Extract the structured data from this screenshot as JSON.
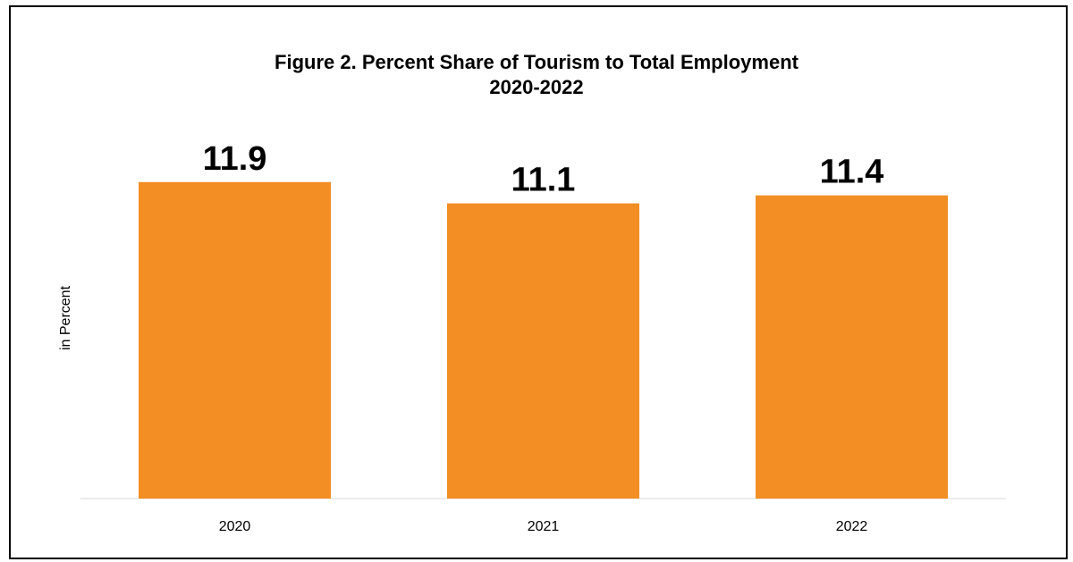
{
  "title_line1": "Figure 2. Percent Share of Tourism to Total Employment",
  "title_line2": "2020-2022",
  "chart_data": {
    "type": "bar",
    "title": "Figure 2. Percent Share of Tourism to Total Employment 2020-2022",
    "xlabel": "",
    "ylabel": "in Percent",
    "categories": [
      "2020",
      "2021",
      "2022"
    ],
    "values": [
      11.9,
      11.1,
      11.4
    ],
    "data_labels": [
      "11.9",
      "11.1",
      "11.4"
    ],
    "ylim": [
      0,
      17
    ],
    "grid": false,
    "legend": "none",
    "bar_color": "#F28E24"
  }
}
